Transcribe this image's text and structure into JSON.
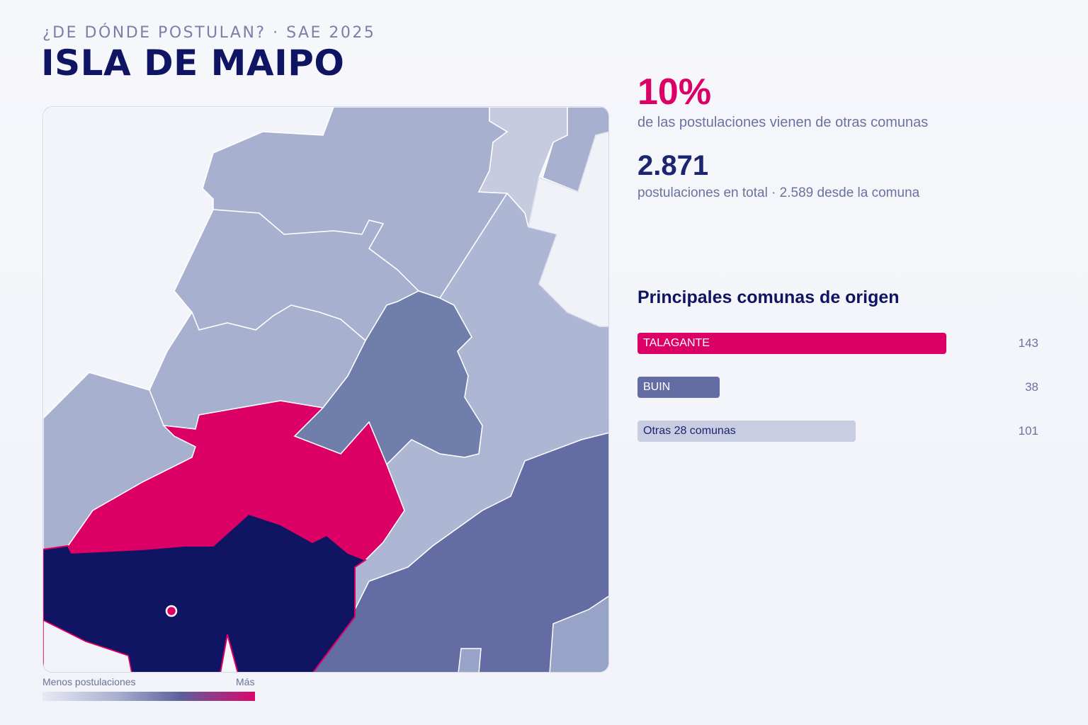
{
  "header": {
    "kicker": "¿DE DÓNDE POSTULAN? · SAE 2025",
    "title": "ISLA DE MAIPO"
  },
  "legend": {
    "low_label": "Menos postulaciones",
    "high_label": "Más",
    "gradient_colors": [
      "#e8eaf3",
      "#a9b0cf",
      "#5d5f9d",
      "#d8086b"
    ]
  },
  "stats": {
    "percent_value": "10%",
    "percent_desc": "de las postulaciones vienen de otras comunas",
    "total_value": "2.871",
    "total_desc": "postulaciones en total · 2.589 desde la comuna"
  },
  "ranking": {
    "title": "Principales comunas de origen",
    "items": [
      {
        "label": "TALAGANTE",
        "value": "143",
        "color": "#dc0066",
        "text_color": "#ffffff"
      },
      {
        "label": "BUIN",
        "value": "38",
        "color": "#636ca3",
        "text_color": "#ffffff"
      },
      {
        "label": "Otras 28 comunas",
        "value": "101",
        "color": "#c9cde1",
        "text_color": "#1d2470"
      }
    ]
  },
  "map": {
    "colors": {
      "home": "#0f1562",
      "top_origin": "#dc0066",
      "high": "#636ca3",
      "mid": "#6f7eab",
      "low": "#a7b1cf",
      "lower": "#c6cbe0",
      "none": "#f5f6fa",
      "marker": "#dc0066"
    }
  }
}
